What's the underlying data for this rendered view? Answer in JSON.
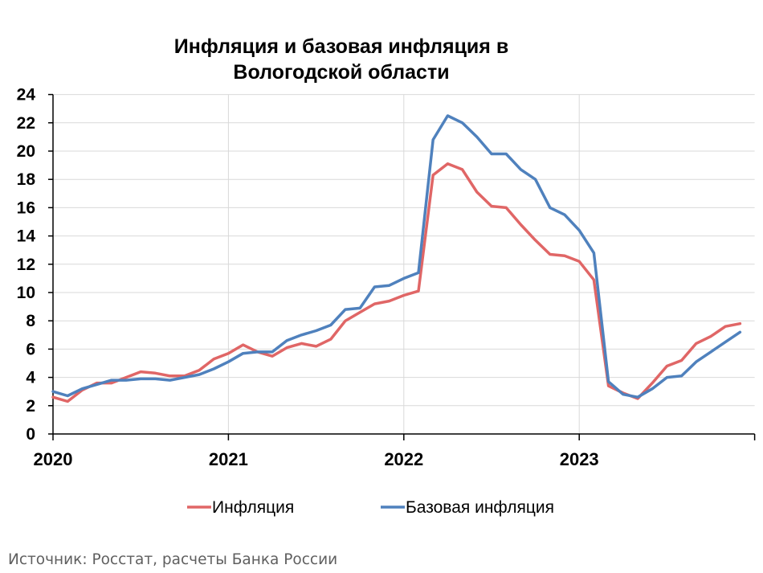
{
  "chart_data": {
    "type": "line",
    "title": "Инфляция и базовая инфляция в Вологодской области",
    "title_lines": [
      "Инфляция и базовая инфляция в",
      "Вологодской области"
    ],
    "xlabel": "",
    "ylabel": "",
    "ylim": [
      0,
      24
    ],
    "yticks": [
      0,
      2,
      4,
      6,
      8,
      10,
      12,
      14,
      16,
      18,
      20,
      22,
      24
    ],
    "x_tick_labels": [
      "2020",
      "2021",
      "2022",
      "2023"
    ],
    "x": [
      "2020-01",
      "2020-02",
      "2020-03",
      "2020-04",
      "2020-05",
      "2020-06",
      "2020-07",
      "2020-08",
      "2020-09",
      "2020-10",
      "2020-11",
      "2020-12",
      "2021-01",
      "2021-02",
      "2021-03",
      "2021-04",
      "2021-05",
      "2021-06",
      "2021-07",
      "2021-08",
      "2021-09",
      "2021-10",
      "2021-11",
      "2021-12",
      "2022-01",
      "2022-02",
      "2022-03",
      "2022-04",
      "2022-05",
      "2022-06",
      "2022-07",
      "2022-08",
      "2022-09",
      "2022-10",
      "2022-11",
      "2022-12",
      "2023-01",
      "2023-02",
      "2023-03",
      "2023-04",
      "2023-05",
      "2023-06",
      "2023-07",
      "2023-08",
      "2023-09",
      "2023-10",
      "2023-11",
      "2023-12"
    ],
    "series": [
      {
        "name": "Инфляция",
        "color": "#e06666",
        "values": [
          2.6,
          2.3,
          3.1,
          3.6,
          3.6,
          4.0,
          4.4,
          4.3,
          4.1,
          4.1,
          4.5,
          5.3,
          5.7,
          6.3,
          5.8,
          5.5,
          6.1,
          6.4,
          6.2,
          6.7,
          8.0,
          8.6,
          9.2,
          9.4,
          9.8,
          10.1,
          18.3,
          19.1,
          18.7,
          17.1,
          16.1,
          16.0,
          14.8,
          13.7,
          12.7,
          12.6,
          12.2,
          10.9,
          3.4,
          2.9,
          2.5,
          3.6,
          4.8,
          5.2,
          6.4,
          6.9,
          7.6,
          7.8
        ]
      },
      {
        "name": "Базовая инфляция",
        "color": "#4f81bd",
        "values": [
          3.0,
          2.7,
          3.2,
          3.5,
          3.8,
          3.8,
          3.9,
          3.9,
          3.8,
          4.0,
          4.2,
          4.6,
          5.1,
          5.7,
          5.8,
          5.8,
          6.6,
          7.0,
          7.3,
          7.7,
          8.8,
          8.9,
          10.4,
          10.5,
          11.0,
          11.4,
          20.8,
          22.5,
          22.0,
          21.0,
          19.8,
          19.8,
          18.7,
          18.0,
          16.0,
          15.5,
          14.4,
          12.8,
          3.7,
          2.8,
          2.6,
          3.2,
          4.0,
          4.1,
          5.1,
          5.8,
          6.5,
          7.2
        ]
      }
    ],
    "legend": {
      "position": "bottom",
      "entries": [
        "Инфляция",
        "Базовая инфляция"
      ]
    },
    "grid": {
      "horizontal": true,
      "vertical": true
    }
  },
  "source_note": "Источник: Росстат, расчеты Банка России"
}
